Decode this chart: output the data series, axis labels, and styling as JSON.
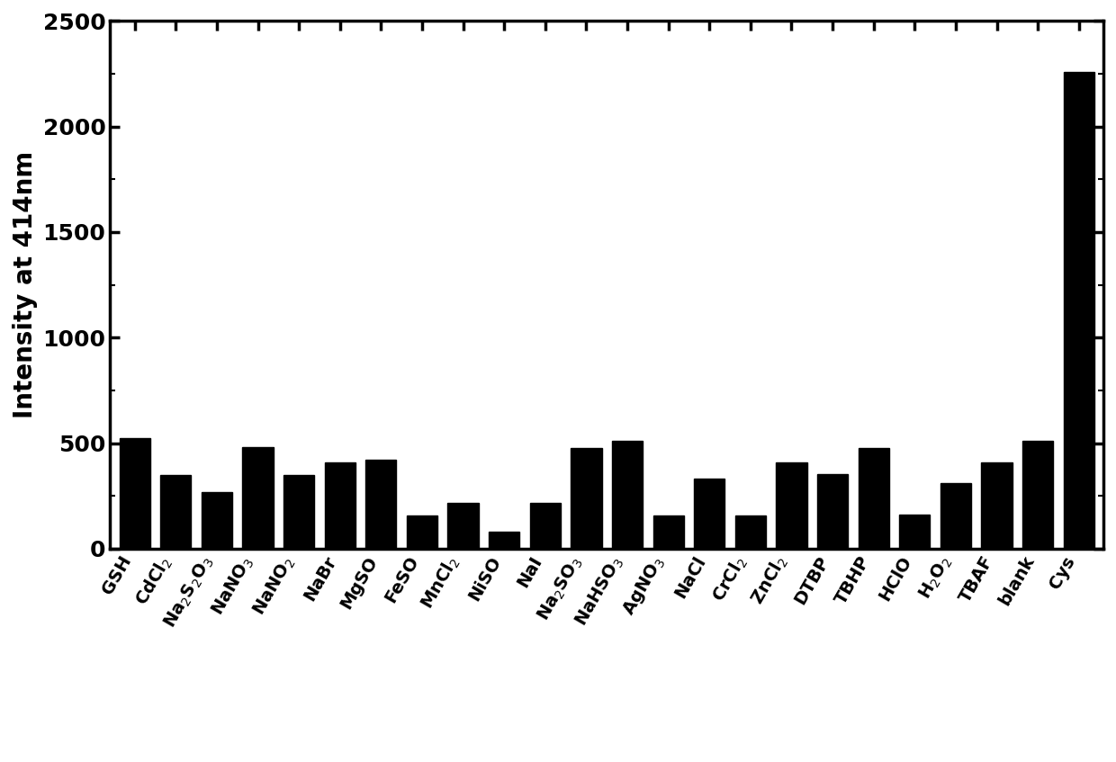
{
  "categories": [
    "GSH",
    "CdCl$_2$",
    "Na$_2$S$_2$O$_3$",
    "NaNO$_3$",
    "NaNO$_2$",
    "NaBr",
    "MgSO",
    "FeSO",
    "MnCl$_2$",
    "NiSO",
    "NaI",
    "Na$_2$SO$_3$",
    "NaHSO$_3$",
    "AgNO$_3$",
    "NaCl",
    "CrCl$_2$",
    "ZnCl$_2$",
    "DTBP",
    "TBHP",
    "HClO",
    "H$_2$O$_2$",
    "TBAF",
    "blank",
    "Cys"
  ],
  "values": [
    525,
    350,
    270,
    480,
    350,
    410,
    420,
    155,
    215,
    80,
    215,
    475,
    510,
    155,
    330,
    155,
    410,
    355,
    475,
    160,
    310,
    410,
    510,
    2260
  ],
  "bar_color": "#000000",
  "ylabel": "Intensity at 414nm",
  "ylim": [
    0,
    2500
  ],
  "yticks": [
    0,
    500,
    1000,
    1500,
    2000,
    2500
  ],
  "ylabel_fontsize": 20,
  "tick_fontsize": 18,
  "xlabel_fontsize": 14,
  "bar_width": 0.75,
  "label_rotation": 60,
  "figure_width": 12.4,
  "figure_height": 8.47
}
